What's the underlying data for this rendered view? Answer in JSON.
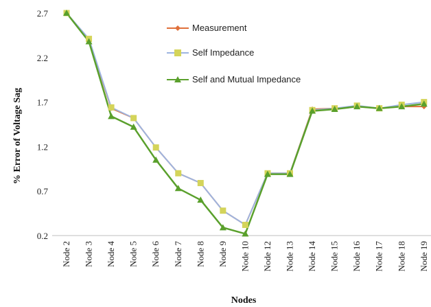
{
  "chart_data": {
    "type": "line",
    "title": "",
    "xlabel": "Nodes",
    "ylabel": "% Error of Voltage Sag",
    "categories": [
      "Node 2",
      "Node 3",
      "Node 4",
      "Node 5",
      "Node 6",
      "Node 7",
      "Node 8",
      "Node 9",
      "Node 10",
      "Node 12",
      "Node 13",
      "Node 14",
      "Node 15",
      "Node 16",
      "Node 17",
      "Node 18",
      "Node 19"
    ],
    "ylim": [
      0.2,
      2.7
    ],
    "yticks": [
      "0.2",
      "0.7",
      "1.2",
      "1.7",
      "2.2",
      "2.7"
    ],
    "grid": false,
    "legend_position": "top-center",
    "series": [
      {
        "name": "Measurement",
        "color": "#e0703a",
        "marker": "diamond",
        "values": [
          2.7,
          2.4,
          1.63,
          1.52,
          1.19,
          0.9,
          0.79,
          0.48,
          0.32,
          0.9,
          0.9,
          1.62,
          1.63,
          1.65,
          1.63,
          1.65,
          1.65
        ]
      },
      {
        "name": "Self Impedance",
        "color": "#9db4e0",
        "marker": "square",
        "marker_color": "#d4d45a",
        "values": [
          2.7,
          2.41,
          1.64,
          1.52,
          1.19,
          0.9,
          0.79,
          0.48,
          0.32,
          0.9,
          0.9,
          1.61,
          1.63,
          1.66,
          1.63,
          1.67,
          1.7
        ]
      },
      {
        "name": "Self and Mutual Impedance",
        "color": "#5aa02c",
        "marker": "triangle",
        "values": [
          2.7,
          2.38,
          1.54,
          1.42,
          1.05,
          0.73,
          0.6,
          0.29,
          0.22,
          0.89,
          0.89,
          1.6,
          1.62,
          1.65,
          1.63,
          1.65,
          1.68
        ]
      }
    ]
  }
}
